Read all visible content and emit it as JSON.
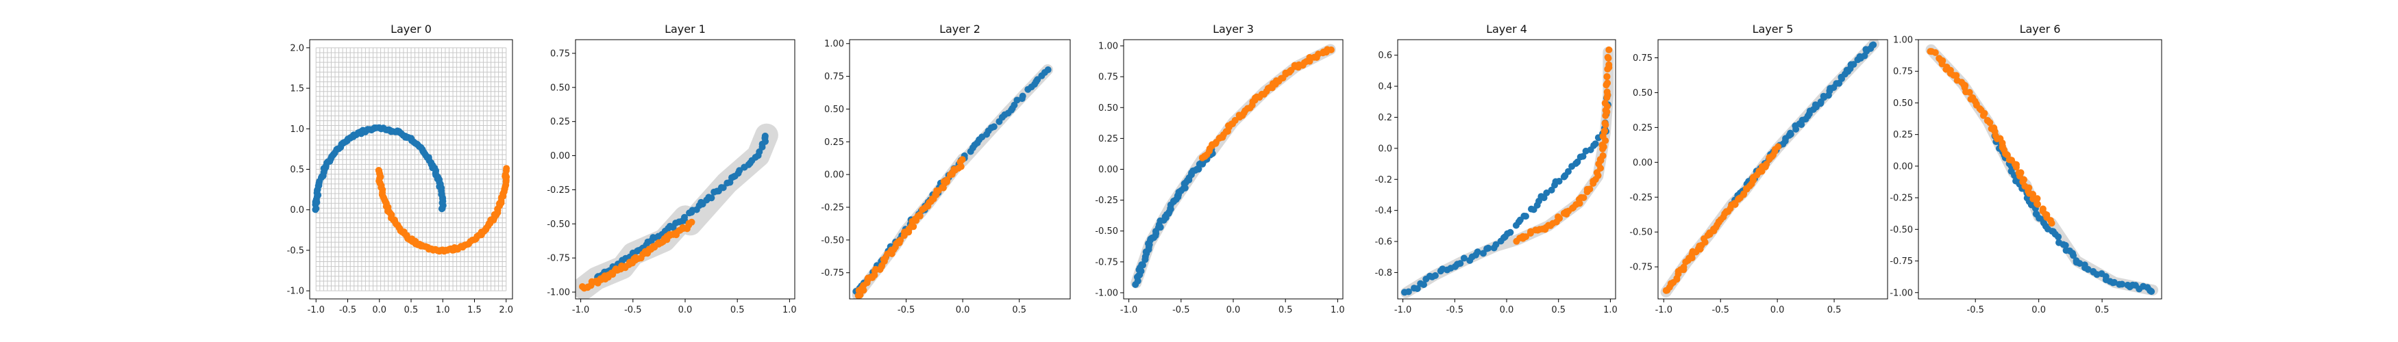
{
  "colors": {
    "blue": "#1f77b4",
    "orange": "#ff7f0e",
    "grid": "#c8c8c8",
    "band": "#d9d9d9",
    "frame": "#000000"
  },
  "chart_data": [
    {
      "type": "scatter",
      "title": "Layer 0",
      "xlim": [
        -1.1,
        2.1
      ],
      "ylim": [
        -1.1,
        2.1
      ],
      "xticks": [
        "-1.0",
        "-0.5",
        "0.0",
        "0.5",
        "1.0",
        "1.5",
        "2.0"
      ],
      "yticks": [
        "-1.0",
        "-0.5",
        "0.0",
        "0.5",
        "1.0",
        "1.5",
        "2.0"
      ],
      "grid": "warped mesh on",
      "series": [
        {
          "color": "blue",
          "shape": "upper moon: x = cos(t), y = sin(t), t from 0 to 180 degrees",
          "points": [
            [
              1.0,
              0.0
            ],
            [
              0.87,
              0.5
            ],
            [
              0.5,
              0.87
            ],
            [
              0.0,
              1.0
            ],
            [
              -0.5,
              0.87
            ],
            [
              -0.87,
              0.5
            ],
            [
              -1.0,
              0.0
            ]
          ]
        },
        {
          "color": "orange",
          "shape": "lower moon: x = 1 - cos(t), y = 0.5 - sin(t), t from 0 to 180 degrees",
          "points": [
            [
              0.0,
              0.5
            ],
            [
              0.13,
              0.0
            ],
            [
              0.5,
              -0.37
            ],
            [
              1.0,
              -0.5
            ],
            [
              1.5,
              -0.37
            ],
            [
              1.87,
              0.0
            ],
            [
              2.0,
              0.5
            ]
          ]
        }
      ]
    },
    {
      "type": "scatter",
      "title": "Layer 1",
      "xlim": [
        -1.05,
        1.05
      ],
      "ylim": [
        -1.05,
        0.85
      ],
      "xticks": [
        "-1.0",
        "-0.5",
        "0.0",
        "0.5",
        "1.0"
      ],
      "yticks": [
        "-1.00",
        "-0.75",
        "-0.50",
        "-0.25",
        "0.00",
        "0.25",
        "0.50",
        "0.75"
      ],
      "grid": "warped mesh band",
      "series": [
        {
          "color": "blue",
          "points": [
            [
              -0.85,
              -0.9
            ],
            [
              -0.5,
              -0.72
            ],
            [
              0.0,
              -0.45
            ],
            [
              0.4,
              -0.2
            ],
            [
              0.7,
              0.0
            ],
            [
              0.78,
              0.15
            ]
          ]
        },
        {
          "color": "orange",
          "points": [
            [
              -0.97,
              -0.97
            ],
            [
              -0.6,
              -0.82
            ],
            [
              -0.2,
              -0.62
            ],
            [
              0.05,
              -0.5
            ]
          ]
        }
      ]
    },
    {
      "type": "scatter",
      "title": "Layer 2",
      "xlim": [
        -1.0,
        0.95
      ],
      "ylim": [
        -0.95,
        1.03
      ],
      "xticks": [
        "-0.5",
        "0.0",
        "0.5"
      ],
      "yticks": [
        "-0.75",
        "-0.50",
        "-0.25",
        "0.00",
        "0.25",
        "0.50",
        "0.75",
        "1.00"
      ],
      "grid": "warped mesh band",
      "series": [
        {
          "color": "blue",
          "points": [
            [
              -0.93,
              -0.9
            ],
            [
              -0.5,
              -0.42
            ],
            [
              0.0,
              0.12
            ],
            [
              0.4,
              0.48
            ],
            [
              0.75,
              0.8
            ]
          ]
        },
        {
          "color": "orange",
          "points": [
            [
              -0.93,
              -0.92
            ],
            [
              -0.6,
              -0.55
            ],
            [
              -0.3,
              -0.22
            ],
            [
              0.0,
              0.1
            ]
          ]
        }
      ]
    },
    {
      "type": "scatter",
      "title": "Layer 3",
      "xlim": [
        -1.05,
        1.05
      ],
      "ylim": [
        -1.05,
        1.05
      ],
      "xticks": [
        "-1.0",
        "-0.5",
        "0.0",
        "0.5",
        "1.0"
      ],
      "yticks": [
        "-1.00",
        "-0.75",
        "-0.50",
        "-0.25",
        "0.00",
        "0.25",
        "0.50",
        "0.75",
        "1.00"
      ],
      "grid": "warped mesh band",
      "series": [
        {
          "color": "blue",
          "points": [
            [
              -0.93,
              -0.92
            ],
            [
              -0.8,
              -0.6
            ],
            [
              -0.6,
              -0.3
            ],
            [
              -0.4,
              -0.05
            ],
            [
              -0.2,
              0.15
            ]
          ]
        },
        {
          "color": "orange",
          "points": [
            [
              -0.3,
              0.08
            ],
            [
              0.0,
              0.38
            ],
            [
              0.3,
              0.63
            ],
            [
              0.6,
              0.83
            ],
            [
              0.93,
              0.97
            ]
          ]
        }
      ]
    },
    {
      "type": "scatter",
      "title": "Layer 4",
      "xlim": [
        -1.05,
        1.05
      ],
      "ylim": [
        -0.97,
        0.7
      ],
      "xticks": [
        "-1.0",
        "-0.5",
        "0.0",
        "0.5",
        "1.0"
      ],
      "yticks": [
        "-0.8",
        "-0.6",
        "-0.4",
        "-0.2",
        "0.0",
        "0.2",
        "0.4",
        "0.6"
      ],
      "grid": "warped mesh band",
      "series": [
        {
          "color": "blue",
          "points": [
            [
              -0.97,
              -0.93
            ],
            [
              -0.7,
              -0.82
            ],
            [
              -0.4,
              -0.72
            ],
            [
              -0.1,
              -0.63
            ],
            [
              0.95,
              0.1
            ],
            [
              0.98,
              0.35
            ]
          ]
        },
        {
          "color": "orange",
          "points": [
            [
              0.1,
              -0.59
            ],
            [
              0.4,
              -0.5
            ],
            [
              0.7,
              -0.35
            ],
            [
              0.88,
              -0.18
            ],
            [
              0.95,
              0.1
            ],
            [
              0.98,
              0.62
            ]
          ]
        }
      ]
    },
    {
      "type": "scatter",
      "title": "Layer 5",
      "xlim": [
        -1.05,
        0.97
      ],
      "ylim": [
        -0.98,
        0.88
      ],
      "xticks": [
        "-1.0",
        "-0.5",
        "0.0",
        "0.5"
      ],
      "yticks": [
        "-0.75",
        "-0.50",
        "-0.25",
        "0.00",
        "0.25",
        "0.50",
        "0.75"
      ],
      "grid": "warped mesh band",
      "series": [
        {
          "color": "blue",
          "points": [
            [
              -0.4,
              -0.3
            ],
            [
              -0.1,
              0.0
            ],
            [
              0.2,
              0.28
            ],
            [
              0.5,
              0.55
            ],
            [
              0.85,
              0.85
            ]
          ]
        },
        {
          "color": "orange",
          "points": [
            [
              -0.98,
              -0.93
            ],
            [
              -0.8,
              -0.72
            ],
            [
              -0.6,
              -0.52
            ],
            [
              -0.3,
              -0.22
            ],
            [
              0.0,
              0.1
            ]
          ]
        }
      ]
    },
    {
      "type": "scatter",
      "title": "Layer 6",
      "xlim": [
        -0.95,
        0.97
      ],
      "ylim": [
        -1.05,
        1.0
      ],
      "xticks": [
        "-0.5",
        "0.0",
        "0.5"
      ],
      "yticks": [
        "-1.00",
        "-0.75",
        "-0.50",
        "-0.25",
        "0.00",
        "0.25",
        "0.50",
        "0.75",
        "1.00"
      ],
      "grid": "warped mesh band",
      "series": [
        {
          "color": "blue",
          "points": [
            [
              -0.35,
              0.25
            ],
            [
              -0.2,
              -0.05
            ],
            [
              0.0,
              -0.4
            ],
            [
              0.3,
              -0.75
            ],
            [
              0.6,
              -0.92
            ],
            [
              0.9,
              -0.98
            ]
          ]
        },
        {
          "color": "orange",
          "points": [
            [
              -0.85,
              0.92
            ],
            [
              -0.6,
              0.65
            ],
            [
              -0.4,
              0.35
            ],
            [
              -0.1,
              -0.15
            ],
            [
              0.1,
              -0.45
            ]
          ]
        }
      ]
    }
  ]
}
